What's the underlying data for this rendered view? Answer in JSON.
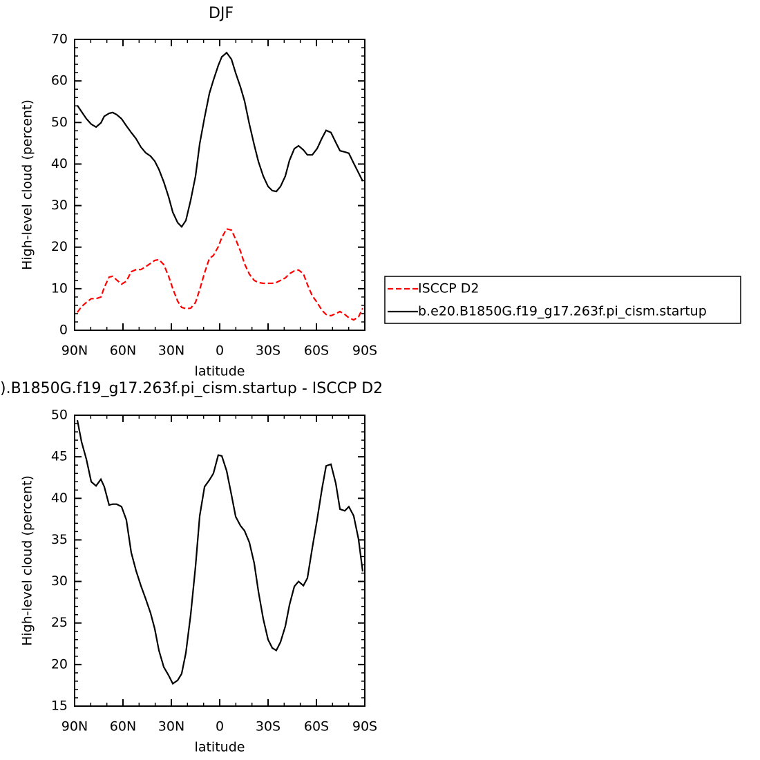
{
  "chart_data": [
    {
      "type": "line",
      "title": "DJF",
      "xlabel": "latitude",
      "ylabel": "High-level cloud (percent)",
      "x": [
        88.3,
        85.7,
        82.7,
        79.7,
        76.7,
        73.7,
        71.6,
        68.6,
        66.4,
        63.9,
        60.9,
        57.9,
        54.9,
        51.9,
        48.9,
        45.9,
        42.9,
        40.3,
        37.7,
        34.7,
        31.7,
        29.1,
        26.1,
        23.6,
        21.0,
        18.0,
        15.0,
        12.4,
        9.4,
        6.4,
        3.9,
        0.9,
        -1.3,
        -4.3,
        -7.3,
        -9.9,
        -12.9,
        -15.4,
        -18.4,
        -21.4,
        -24.0,
        -27.0,
        -30.0,
        -32.6,
        -35.1,
        -37.7,
        -40.7,
        -43.3,
        -46.3,
        -48.9,
        -51.9,
        -54.4,
        -57.4,
        -60.4,
        -63.4,
        -66.0,
        -69.0,
        -72.0,
        -74.6,
        -77.6,
        -80.1,
        -83.1,
        -86.1,
        -88.7
      ],
      "series": [
        {
          "name": "ISCCP D2",
          "color": "#ff0000",
          "line_style": "dashed",
          "values": [
            4.3,
            5.7,
            6.7,
            7.6,
            7.6,
            8.0,
            10.3,
            12.8,
            13.0,
            12.1,
            11.1,
            11.8,
            14.1,
            14.6,
            14.6,
            15.3,
            16.1,
            16.8,
            17.0,
            15.8,
            13.0,
            10.0,
            7.0,
            5.5,
            5.2,
            5.3,
            6.7,
            9.8,
            13.8,
            17.3,
            18.0,
            20.1,
            22.3,
            24.4,
            24.1,
            21.9,
            19.0,
            16.0,
            13.5,
            12.0,
            11.5,
            11.3,
            11.3,
            11.3,
            11.5,
            12.0,
            12.6,
            13.6,
            14.3,
            14.5,
            13.6,
            11.0,
            8.3,
            6.7,
            4.8,
            3.8,
            3.5,
            4.0,
            4.5,
            3.8,
            3.0,
            2.5,
            3.2,
            5.3
          ]
        },
        {
          "name": "b.e20.B1850G.f19_g17.263f.pi_cism.startup",
          "color": "#000000",
          "line_style": "solid",
          "values": [
            54.1,
            52.6,
            50.9,
            49.6,
            48.9,
            49.9,
            51.5,
            52.2,
            52.4,
            51.9,
            50.9,
            49.2,
            47.6,
            46.1,
            44.1,
            42.7,
            41.9,
            40.7,
            38.7,
            35.7,
            32.1,
            28.4,
            25.9,
            24.9,
            26.4,
            31.3,
            37.1,
            44.9,
            51.2,
            57.0,
            60.2,
            63.7,
            65.8,
            66.8,
            65.2,
            61.9,
            58.5,
            55.2,
            49.6,
            44.6,
            40.6,
            37.1,
            34.6,
            33.6,
            33.4,
            34.6,
            37.1,
            40.9,
            43.7,
            44.4,
            43.4,
            42.2,
            42.2,
            43.7,
            46.2,
            48.1,
            47.6,
            45.2,
            43.2,
            42.9,
            42.6,
            40.2,
            37.9,
            35.9
          ]
        }
      ],
      "xlim": [
        90,
        -90
      ],
      "xticks": [
        {
          "value": 90,
          "label": "90N"
        },
        {
          "value": 60,
          "label": "60N"
        },
        {
          "value": 30,
          "label": "30N"
        },
        0,
        {
          "value": -30,
          "label": "30S"
        },
        {
          "value": -60,
          "label": "60S"
        },
        {
          "value": -90,
          "label": "90S"
        }
      ],
      "ylim": [
        0,
        70
      ],
      "yticks": [
        0,
        10,
        20,
        30,
        40,
        50,
        60,
        70
      ],
      "legend": "right"
    },
    {
      "type": "line",
      "title": ").B1850G.f19_g17.263f.pi_cism.startup - ISCCP D2",
      "xlabel": "latitude",
      "ylabel": "High-level cloud (percent)",
      "x": [
        88.3,
        85.7,
        82.7,
        79.7,
        76.7,
        73.7,
        71.6,
        68.6,
        66.4,
        63.9,
        60.9,
        57.9,
        54.9,
        51.9,
        48.9,
        45.9,
        42.9,
        40.3,
        37.7,
        34.7,
        31.7,
        29.1,
        26.1,
        23.6,
        21.0,
        18.0,
        15.0,
        12.4,
        9.4,
        6.4,
        3.9,
        0.9,
        -1.3,
        -4.3,
        -7.3,
        -9.9,
        -12.9,
        -15.4,
        -18.4,
        -21.4,
        -24.0,
        -27.0,
        -30.0,
        -32.6,
        -35.1,
        -37.7,
        -40.7,
        -43.3,
        -46.3,
        -48.9,
        -51.9,
        -54.4,
        -57.4,
        -60.4,
        -63.4,
        -66.0,
        -69.0,
        -72.0,
        -74.6,
        -77.6,
        -80.1,
        -83.1,
        -86.1,
        -88.7
      ],
      "series": [
        {
          "color": "#000000",
          "line_style": "solid",
          "values": [
            49.4,
            46.8,
            44.7,
            42.0,
            41.5,
            42.3,
            41.4,
            39.2,
            39.3,
            39.3,
            39.0,
            37.4,
            33.5,
            31.3,
            29.5,
            27.9,
            26.2,
            24.3,
            21.7,
            19.7,
            18.7,
            17.7,
            18.1,
            18.9,
            21.4,
            26.0,
            31.8,
            37.9,
            41.4,
            42.2,
            43.0,
            45.2,
            45.1,
            43.3,
            40.4,
            37.8,
            36.7,
            36.1,
            34.7,
            32.2,
            28.8,
            25.5,
            23.0,
            22.0,
            21.7,
            22.7,
            24.6,
            27.2,
            29.4,
            30.0,
            29.5,
            30.4,
            34.0,
            37.4,
            41.1,
            43.9,
            44.1,
            41.8,
            38.7,
            38.5,
            39.0,
            37.9,
            35.1,
            31.2
          ]
        }
      ],
      "xlim": [
        90,
        -90
      ],
      "xticks": [
        {
          "value": 90,
          "label": "90N"
        },
        {
          "value": 60,
          "label": "60N"
        },
        {
          "value": 30,
          "label": "30N"
        },
        0,
        {
          "value": -30,
          "label": "30S"
        },
        {
          "value": -60,
          "label": "60S"
        },
        {
          "value": -90,
          "label": "90S"
        }
      ],
      "ylim": [
        15,
        50
      ],
      "yticks": [
        15,
        20,
        25,
        30,
        35,
        40,
        45,
        50
      ]
    }
  ]
}
